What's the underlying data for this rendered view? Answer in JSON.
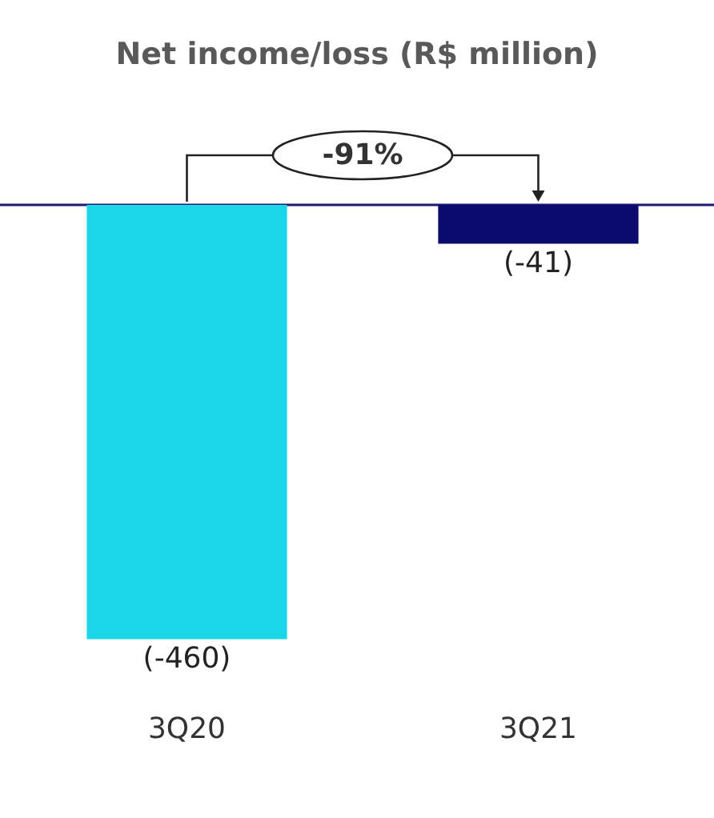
{
  "chart_data": {
    "type": "bar",
    "title": "Net income/loss (R$ million)",
    "categories": [
      "3Q20",
      "3Q21"
    ],
    "values": [
      -460,
      -41
    ],
    "colors": [
      "#1ad6e8",
      "#0b0b6e"
    ],
    "value_labels": [
      "(-460)",
      "(-41)"
    ],
    "annotations": [
      "-91%"
    ],
    "grid": false,
    "legend": false
  }
}
